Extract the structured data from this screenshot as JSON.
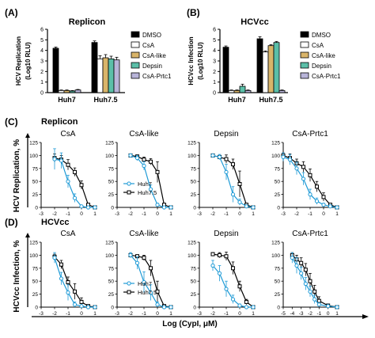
{
  "figure": {
    "panel_labels": [
      "(A)",
      "(B)",
      "(C)",
      "(D)"
    ],
    "section_titles": {
      "C": "Replicon",
      "D": "HCVcc"
    },
    "row_ylabels": {
      "C": "HCV Replication, %",
      "D": "HCVcc Infection, %"
    },
    "shared_xlabel": "Log (CypI, μM)"
  },
  "chart_data": [
    {
      "type": "bar",
      "panel": "A",
      "title": "Replicon",
      "ylabel_line1": "HCV Replication",
      "ylabel_line2": "(Log10 RLU)",
      "ylim": [
        0,
        6
      ],
      "yticks": [
        0,
        1,
        2,
        3,
        4,
        5,
        6
      ],
      "categories": [
        "Huh7",
        "Huh7.5"
      ],
      "series": [
        {
          "name": "DMSO",
          "color": "#000000",
          "values": [
            4.2,
            4.75
          ],
          "err": [
            0.12,
            0.15
          ]
        },
        {
          "name": "CsA",
          "color": "#ffffff",
          "values": [
            0.2,
            3.2
          ],
          "err": [
            0.05,
            0.3
          ]
        },
        {
          "name": "CsA-like",
          "color": "#d9b56a",
          "values": [
            0.2,
            3.3
          ],
          "err": [
            0.05,
            0.3
          ]
        },
        {
          "name": "Depsin",
          "color": "#5bbfa8",
          "values": [
            0.15,
            3.2
          ],
          "err": [
            0.05,
            0.25
          ]
        },
        {
          "name": "CsA-Prtc1",
          "color": "#b8b4d8",
          "values": [
            0.25,
            3.1
          ],
          "err": [
            0.05,
            0.25
          ]
        }
      ],
      "legend": [
        "DMSO",
        "CsA",
        "CsA-like",
        "Depsin",
        "CsA-Prtc1"
      ]
    },
    {
      "type": "bar",
      "panel": "B",
      "title": "HCVcc",
      "ylabel_line1": "HCVcc Infection",
      "ylabel_line2": "(Log10 RLU)",
      "ylim": [
        0,
        6
      ],
      "yticks": [
        0,
        1,
        2,
        3,
        4,
        5,
        6
      ],
      "categories": [
        "Huh7",
        "Huh7.5"
      ],
      "series": [
        {
          "name": "DMSO",
          "color": "#000000",
          "values": [
            4.3,
            5.1
          ],
          "err": [
            0.12,
            0.2
          ]
        },
        {
          "name": "CsA",
          "color": "#ffffff",
          "values": [
            0.2,
            3.85
          ],
          "err": [
            0.05,
            0.1
          ]
        },
        {
          "name": "CsA-like",
          "color": "#d9b56a",
          "values": [
            0.2,
            4.45
          ],
          "err": [
            0.05,
            0.1
          ]
        },
        {
          "name": "Depsin",
          "color": "#5bbfa8",
          "values": [
            0.6,
            4.75
          ],
          "err": [
            0.2,
            0.1
          ]
        },
        {
          "name": "CsA-Prtc1",
          "color": "#b8b4d8",
          "values": [
            0.2,
            0.2
          ],
          "err": [
            0.05,
            0.05
          ]
        }
      ],
      "legend": [
        "DMSO",
        "CsA",
        "CsA-like",
        "Depsin",
        "CsA-Prtc1"
      ]
    },
    {
      "type": "line",
      "panel": "C",
      "title": "CsA",
      "xlim": [
        -3,
        1
      ],
      "xticks": [
        -3,
        -2,
        -1,
        0,
        1
      ],
      "ylim": [
        0,
        125
      ],
      "yticks": [
        0,
        25,
        50,
        75,
        100,
        125
      ],
      "series": [
        {
          "name": "Huh7",
          "color": "#1e9ad6",
          "marker": "circle",
          "x": [
            -2,
            -1.5,
            -1,
            -0.5,
            0,
            0.5,
            1
          ],
          "y": [
            93,
            90,
            50,
            18,
            2,
            0,
            0
          ],
          "err": [
            20,
            15,
            12,
            8,
            2,
            0,
            0
          ]
        },
        {
          "name": "Huh7.5",
          "color": "#000000",
          "marker": "square",
          "x": [
            -2,
            -1.5,
            -1,
            -0.5,
            0,
            0.5,
            1
          ],
          "y": [
            95,
            92,
            82,
            68,
            43,
            5,
            0
          ],
          "err": [
            8,
            8,
            10,
            8,
            8,
            3,
            0
          ]
        }
      ]
    },
    {
      "type": "line",
      "panel": "C",
      "title": "CsA-like",
      "xlim": [
        -3,
        1
      ],
      "xticks": [
        -3,
        -2,
        -1,
        0,
        1
      ],
      "ylim": [
        0,
        125
      ],
      "yticks": [
        0,
        25,
        50,
        75,
        100,
        125
      ],
      "series": [
        {
          "name": "Huh7",
          "color": "#1e9ad6",
          "marker": "circle",
          "x": [
            -2,
            -1.5,
            -1,
            -0.5,
            0,
            0.5,
            1
          ],
          "y": [
            100,
            95,
            80,
            35,
            5,
            0,
            0
          ],
          "err": [
            3,
            5,
            8,
            8,
            3,
            0,
            0
          ]
        },
        {
          "name": "Huh7.5",
          "color": "#000000",
          "marker": "square",
          "x": [
            -2,
            -1.5,
            -1,
            -0.5,
            0,
            0.5,
            1
          ],
          "y": [
            100,
            98,
            92,
            88,
            68,
            5,
            0
          ],
          "err": [
            3,
            3,
            5,
            6,
            20,
            3,
            0
          ]
        }
      ],
      "legend": [
        "Huh7",
        "Huh7.5"
      ]
    },
    {
      "type": "line",
      "panel": "C",
      "title": "Depsin",
      "xlim": [
        -3,
        1
      ],
      "xticks": [
        -3,
        -2,
        -1,
        0,
        1
      ],
      "ylim": [
        0,
        125
      ],
      "yticks": [
        0,
        25,
        50,
        75,
        100,
        125
      ],
      "series": [
        {
          "name": "Huh7",
          "color": "#1e9ad6",
          "marker": "circle",
          "x": [
            -2,
            -1.5,
            -1,
            -0.5,
            0,
            0.5,
            1
          ],
          "y": [
            100,
            97,
            68,
            25,
            10,
            2,
            0
          ],
          "err": [
            2,
            5,
            15,
            15,
            6,
            2,
            0
          ]
        },
        {
          "name": "Huh7.5",
          "color": "#000000",
          "marker": "square",
          "x": [
            -2,
            -1.5,
            -1,
            -0.5,
            0,
            0.5,
            1
          ],
          "y": [
            100,
            97,
            93,
            83,
            45,
            5,
            0
          ],
          "err": [
            2,
            3,
            8,
            10,
            25,
            3,
            0
          ]
        }
      ]
    },
    {
      "type": "line",
      "panel": "C",
      "title": "CsA-Prtc1",
      "xlim": [
        -3,
        1
      ],
      "xticks": [
        -3,
        -2,
        -1,
        0,
        1
      ],
      "ylim": [
        0,
        125
      ],
      "yticks": [
        0,
        25,
        50,
        75,
        100,
        125
      ],
      "series": [
        {
          "name": "Huh7",
          "color": "#1e9ad6",
          "marker": "circle",
          "x": [
            -3,
            -2.5,
            -2,
            -1.5,
            -1,
            -0.5,
            0,
            0.5,
            1
          ],
          "y": [
            97,
            92,
            75,
            55,
            25,
            12,
            5,
            2,
            0
          ],
          "err": [
            8,
            10,
            12,
            12,
            10,
            6,
            3,
            0,
            0
          ]
        },
        {
          "name": "Huh7.5",
          "color": "#000000",
          "marker": "square",
          "x": [
            -3,
            -2.5,
            -2,
            -1.5,
            -1,
            -0.5,
            0,
            0.5,
            1
          ],
          "y": [
            100,
            95,
            85,
            78,
            62,
            40,
            20,
            5,
            0
          ],
          "err": [
            5,
            8,
            8,
            10,
            12,
            10,
            8,
            3,
            0
          ]
        }
      ]
    },
    {
      "type": "line",
      "panel": "D",
      "title": "CsA",
      "xlim": [
        -3,
        1
      ],
      "xticks": [
        -3,
        -2,
        -1,
        0,
        1
      ],
      "ylim": [
        0,
        125
      ],
      "yticks": [
        0,
        25,
        50,
        75,
        100,
        125
      ],
      "series": [
        {
          "name": "Huh7",
          "color": "#1e9ad6",
          "marker": "circle",
          "x": [
            -2,
            -1.5,
            -1,
            -0.5,
            0,
            0.5,
            1
          ],
          "y": [
            95,
            55,
            28,
            5,
            2,
            0,
            0
          ],
          "err": [
            10,
            12,
            15,
            5,
            2,
            0,
            0
          ]
        },
        {
          "name": "Huh7.5",
          "color": "#000000",
          "marker": "square",
          "x": [
            -2,
            -1.5,
            -1,
            -0.5,
            0,
            0.5,
            1
          ],
          "y": [
            97,
            82,
            48,
            30,
            10,
            2,
            0
          ],
          "err": [
            5,
            8,
            10,
            15,
            8,
            2,
            0
          ]
        }
      ]
    },
    {
      "type": "line",
      "panel": "D",
      "title": "CsA-like",
      "xlim": [
        -3,
        1
      ],
      "xticks": [
        -3,
        -2,
        -1,
        0,
        1
      ],
      "ylim": [
        0,
        125
      ],
      "yticks": [
        0,
        25,
        50,
        75,
        100,
        125
      ],
      "series": [
        {
          "name": "Huh7",
          "color": "#1e9ad6",
          "marker": "circle",
          "x": [
            -2,
            -1.5,
            -1,
            -0.5,
            0,
            0.5,
            1
          ],
          "y": [
            100,
            85,
            48,
            28,
            5,
            0,
            0
          ],
          "err": [
            5,
            12,
            20,
            15,
            5,
            0,
            0
          ]
        },
        {
          "name": "Huh7.5",
          "color": "#000000",
          "marker": "square",
          "x": [
            -2,
            -1.5,
            -1,
            -0.5,
            0,
            0.5,
            1
          ],
          "y": [
            100,
            98,
            95,
            75,
            30,
            2,
            0
          ],
          "err": [
            3,
            3,
            5,
            15,
            20,
            2,
            0
          ]
        }
      ],
      "legend": [
        "Huh7",
        "Huh7.5"
      ]
    },
    {
      "type": "line",
      "panel": "D",
      "title": "Depsin",
      "xlim": [
        -3,
        1
      ],
      "xticks": [
        -3,
        -2,
        -1,
        0,
        1
      ],
      "ylim": [
        0,
        125
      ],
      "yticks": [
        0,
        25,
        50,
        75,
        100,
        125
      ],
      "series": [
        {
          "name": "Huh7",
          "color": "#1e9ad6",
          "marker": "circle",
          "x": [
            -2,
            -1.5,
            -1,
            -0.5,
            0,
            0.5,
            1
          ],
          "y": [
            80,
            65,
            35,
            15,
            3,
            0,
            0
          ],
          "err": [
            10,
            15,
            15,
            8,
            3,
            0,
            0
          ]
        },
        {
          "name": "Huh7.5",
          "color": "#000000",
          "marker": "square",
          "x": [
            -2,
            -1.5,
            -1,
            -0.5,
            0,
            0.5,
            1
          ],
          "y": [
            102,
            100,
            98,
            75,
            40,
            10,
            0
          ],
          "err": [
            3,
            5,
            8,
            12,
            10,
            5,
            0
          ]
        }
      ]
    },
    {
      "type": "line",
      "panel": "D",
      "title": "CsA-Prtc1",
      "xlim": [
        -5,
        1
      ],
      "xticks": [
        -5,
        -4,
        -3,
        -2,
        -1,
        0,
        1
      ],
      "ylim": [
        0,
        125
      ],
      "yticks": [
        0,
        25,
        50,
        75,
        100,
        125
      ],
      "series": [
        {
          "name": "Huh7",
          "color": "#1e9ad6",
          "marker": "circle",
          "x": [
            -4,
            -3.5,
            -3,
            -2.5,
            -2,
            -1.5,
            -1,
            0,
            1
          ],
          "y": [
            95,
            80,
            65,
            45,
            30,
            15,
            5,
            2,
            0
          ],
          "err": [
            10,
            15,
            12,
            12,
            10,
            8,
            3,
            0,
            0
          ]
        },
        {
          "name": "Huh7.5",
          "color": "#000000",
          "marker": "square",
          "x": [
            -4,
            -3.5,
            -3,
            -2.5,
            -2,
            -1.5,
            -1,
            0,
            1
          ],
          "y": [
            100,
            92,
            85,
            72,
            50,
            30,
            12,
            3,
            0
          ],
          "err": [
            5,
            8,
            10,
            12,
            15,
            12,
            8,
            2,
            0
          ]
        }
      ]
    }
  ]
}
